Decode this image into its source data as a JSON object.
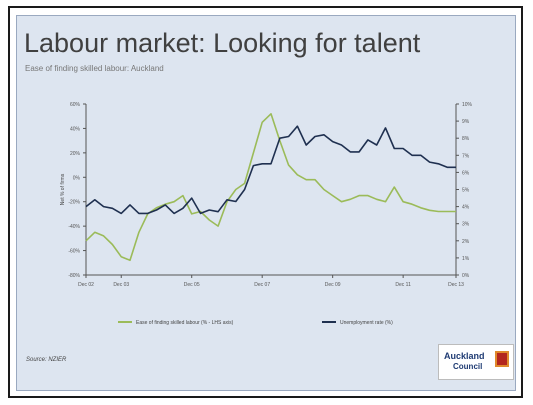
{
  "slide": {
    "title": "Labour market: Looking for talent",
    "subtitle": "Ease of finding skilled labour: Auckland",
    "source": "Source: NZIER"
  },
  "logo": {
    "line1": "Auckland",
    "line2": "Council"
  },
  "colors": {
    "series1": "#9bbb59",
    "series2": "#1f3050",
    "background": "#dde5f0"
  },
  "chart_data": {
    "type": "line",
    "x": [
      "Dec 02",
      "Mar 03",
      "Jun 03",
      "Sep 03",
      "Dec 03",
      "Mar 04",
      "Jun 04",
      "Sep 04",
      "Dec 04",
      "Mar 05",
      "Jun 05",
      "Sep 05",
      "Dec 05",
      "Mar 06",
      "Jun 06",
      "Sep 06",
      "Dec 06",
      "Mar 07",
      "Jun 07",
      "Sep 07",
      "Dec 07",
      "Mar 08",
      "Jun 08",
      "Sep 08",
      "Dec 08",
      "Mar 09",
      "Jun 09",
      "Sep 09",
      "Dec 09",
      "Mar 10",
      "Jun 10",
      "Sep 10",
      "Dec 10",
      "Mar 11",
      "Jun 11",
      "Sep 11",
      "Dec 11",
      "Mar 12",
      "Jun 12",
      "Sep 12",
      "Dec 12",
      "Mar 13",
      "Jun 13"
    ],
    "x_ticks": [
      "Dec 02",
      "Dec 03",
      "Dec 05",
      "Dec 07",
      "Dec 09",
      "Dec 11",
      "Dec 13"
    ],
    "y_left": {
      "label": "Net % of firms",
      "ticks": [
        "60%",
        "40%",
        "20%",
        "0%",
        "-20%",
        "-40%",
        "-60%",
        "-80%"
      ],
      "ylim": [
        -80,
        60
      ]
    },
    "y_right": {
      "ticks": [
        "10%",
        "9%",
        "8%",
        "7%",
        "6%",
        "5%",
        "4%",
        "3%",
        "2%",
        "1%",
        "0%"
      ],
      "ylim": [
        0,
        10
      ]
    },
    "series": [
      {
        "name": "Ease of finding skilled labour (% - LHS axis)",
        "axis": "left",
        "values": [
          -52,
          -45,
          -48,
          -55,
          -65,
          -68,
          -45,
          -30,
          -25,
          -22,
          -20,
          -15,
          -30,
          -28,
          -35,
          -40,
          -20,
          -10,
          -5,
          20,
          45,
          52,
          30,
          10,
          2,
          -2,
          -2,
          -10,
          -15,
          -20,
          -18,
          -15,
          -15,
          -18,
          -20,
          -8,
          -20,
          -22,
          -25,
          -27,
          -28,
          -28,
          -28
        ]
      },
      {
        "name": "Unemployment rate (%)",
        "axis": "right",
        "values": [
          4.0,
          4.4,
          4.0,
          3.9,
          3.6,
          4.1,
          3.6,
          3.6,
          3.8,
          4.1,
          3.6,
          3.9,
          4.5,
          3.6,
          3.8,
          3.7,
          4.4,
          4.3,
          5.0,
          6.4,
          6.5,
          6.5,
          8.0,
          8.1,
          8.7,
          7.6,
          8.1,
          8.2,
          7.8,
          7.6,
          7.2,
          7.2,
          7.9,
          7.6,
          8.6,
          7.4,
          7.4,
          7.0,
          7.0,
          6.6,
          6.5,
          6.3,
          6.3
        ]
      }
    ],
    "legend": "bottom",
    "grid": false
  }
}
